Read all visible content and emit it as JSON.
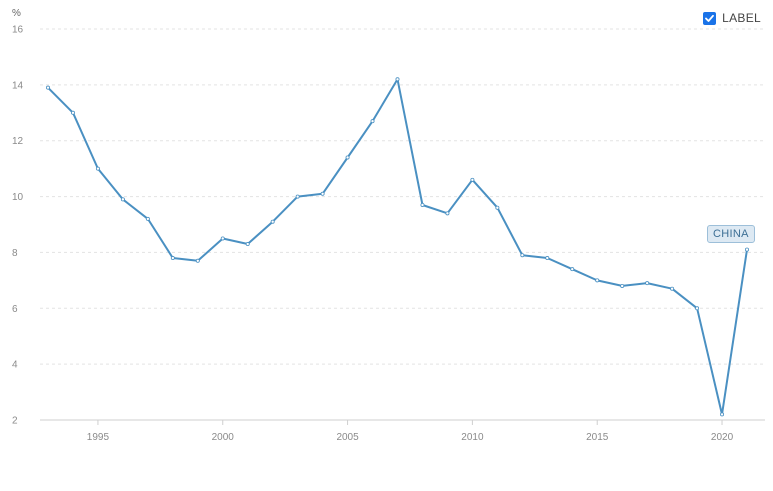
{
  "legend": {
    "label": "LABEL",
    "checked": true
  },
  "callout": {
    "text": "CHINA"
  },
  "colors": {
    "line": "#4a90c2",
    "grid": "#e3e3e3",
    "checkbox": "#1a73e8"
  },
  "chart_data": {
    "type": "line",
    "unit_label": "%",
    "x": [
      1993,
      1994,
      1995,
      1996,
      1997,
      1998,
      1999,
      2000,
      2001,
      2002,
      2003,
      2004,
      2005,
      2006,
      2007,
      2008,
      2009,
      2010,
      2011,
      2012,
      2013,
      2014,
      2015,
      2016,
      2017,
      2018,
      2019,
      2020,
      2021
    ],
    "series": [
      {
        "name": "CHINA",
        "values": [
          13.9,
          13.0,
          11.0,
          9.9,
          9.2,
          7.8,
          7.7,
          8.5,
          8.3,
          9.1,
          10.0,
          10.1,
          11.4,
          12.7,
          14.2,
          9.7,
          9.4,
          10.6,
          9.6,
          7.9,
          7.8,
          7.4,
          7.0,
          6.8,
          6.9,
          6.7,
          6.0,
          2.2,
          8.1
        ]
      }
    ],
    "yticks": [
      2,
      4,
      6,
      8,
      10,
      12,
      14,
      16
    ],
    "xticks": [
      1995,
      2000,
      2005,
      2010,
      2015,
      2020
    ],
    "ylim": [
      2,
      16
    ],
    "xlim": [
      1993,
      2021
    ],
    "grid": true,
    "legend_position": "top-right"
  }
}
